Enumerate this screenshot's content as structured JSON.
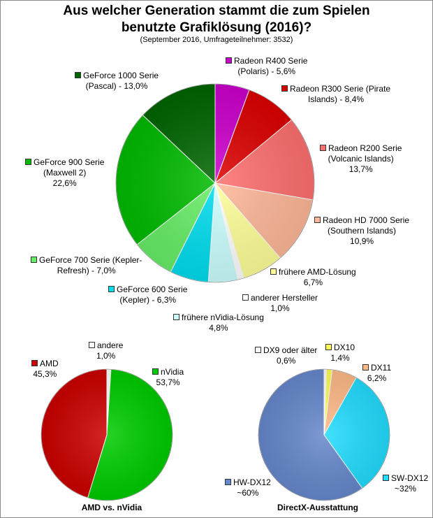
{
  "chart_data": [
    {
      "type": "pie",
      "title_line1": "Aus welcher Generation stammt die zum Spielen",
      "title_line2": "benutzte Grafiklösung (2016)?",
      "subtitle": "(September 2016, Umfrageteilnehmer: 3532)",
      "slices": [
        {
          "label_line1": "Radeon R400 Serie",
          "label_line2": "(Polaris) - 5,6%",
          "value": 5.6,
          "color": "#cc00cc"
        },
        {
          "label_line1": "Radeon R300 Serie (Pirate",
          "label_line2": "Islands) - 8,4%",
          "value": 8.4,
          "color": "#dd0000"
        },
        {
          "label_line1": "Radeon R200 Serie",
          "label_line2": "(Volcanic Islands)",
          "label_line3": "13,7%",
          "value": 13.7,
          "color": "#ff7070"
        },
        {
          "label_line1": "Radeon HD 7000 Serie",
          "label_line2": "(Southern Islands)",
          "label_line3": "10,9%",
          "value": 10.9,
          "color": "#ffb899"
        },
        {
          "label_line1": "frühere AMD-Lösung",
          "label_line2": "6,7%",
          "value": 6.7,
          "color": "#ffff99"
        },
        {
          "label_line1": "anderer Hersteller",
          "label_line2": "1,0%",
          "value": 1.0,
          "color": "#ffffff"
        },
        {
          "label_line1": "frühere nVidia-Lösung",
          "label_line2": "4,8%",
          "value": 4.8,
          "color": "#ccffff"
        },
        {
          "label_line1": "GeForce 600 Serie",
          "label_line2": "(Kepler) - 6,3%",
          "value": 6.3,
          "color": "#00ddee"
        },
        {
          "label_line1": "GeForce 700 Serie (Kepler-",
          "label_line2": "Refresh) - 7,0%",
          "value": 7.0,
          "color": "#66ee66"
        },
        {
          "label_line1": "GeForce 900 Serie",
          "label_line2": "(Maxwell 2)",
          "label_line3": "22,6%",
          "value": 22.6,
          "color": "#00bb00"
        },
        {
          "label_line1": "GeForce 1000 Serie",
          "label_line2": "(Pascal) - 13,0%",
          "value": 13.0,
          "color": "#006600"
        }
      ]
    },
    {
      "type": "pie",
      "title": "AMD vs. nVidia",
      "slices": [
        {
          "label_line1": "andere",
          "label_line2": "1,0%",
          "value": 1.0,
          "color": "#ffffff"
        },
        {
          "label_line1": "nVidia",
          "label_line2": "53,7%",
          "value": 53.7,
          "color": "#00cc00"
        },
        {
          "label_line1": "AMD",
          "label_line2": "45,3%",
          "value": 45.3,
          "color": "#cc0000"
        }
      ]
    },
    {
      "type": "pie",
      "title": "DirectX-Ausstattung",
      "slices": [
        {
          "label_line1": "DX9 oder älter",
          "label_line2": "0,6%",
          "value": 0.6,
          "color": "#ffffff"
        },
        {
          "label_line1": "DX10",
          "label_line2": "1,4%",
          "value": 1.4,
          "color": "#ffff55"
        },
        {
          "label_line1": "DX11",
          "label_line2": "6,2%",
          "value": 6.2,
          "color": "#ffbb88"
        },
        {
          "label_line1": "SW-DX12",
          "label_line2": "~32%",
          "value": 32,
          "color": "#22ddff"
        },
        {
          "label_line1": "HW-DX12",
          "label_line2": "~60%",
          "value": 60,
          "color": "#6688cc"
        }
      ]
    }
  ]
}
